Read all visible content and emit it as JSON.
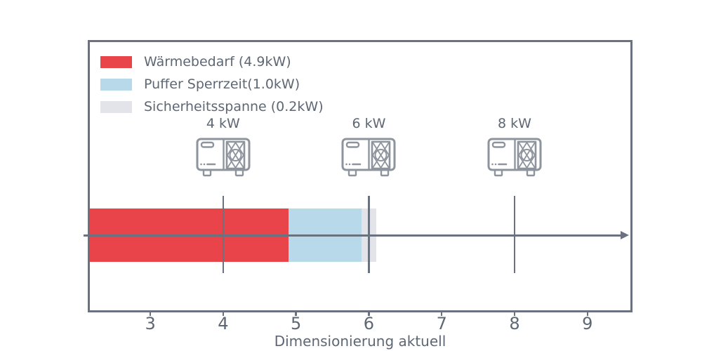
{
  "colors": {
    "axis": "#6a7280",
    "text": "#5e6774",
    "icon_stroke": "#8e949e",
    "background": "#ffffff"
  },
  "chart_data": {
    "type": "bar",
    "orientation": "horizontal-stacked",
    "title": "",
    "xlabel": "Dimensionierung aktuell",
    "ylabel": "",
    "xlim": [
      2.17,
      9.59
    ],
    "xticks": [
      3,
      4,
      5,
      6,
      7,
      8,
      9
    ],
    "grid": false,
    "legend_position": "upper left inside plot",
    "axis_arrow_right": true,
    "segments": [
      {
        "label": "Wärmebedarf (4.9kW)",
        "value_kw": 4.9,
        "start": 0,
        "end": 4.9,
        "color": "#e8444a"
      },
      {
        "label": "Puffer Sperrzeit(1.0kW)",
        "value_kw": 1.0,
        "start": 4.9,
        "end": 5.9,
        "color": "#b8d9ea"
      },
      {
        "label": "Sicherheitsspanne (0.2kW)",
        "value_kw": 0.2,
        "start": 5.9,
        "end": 6.1,
        "color": "#e2e4e9"
      }
    ],
    "markers": [
      {
        "x": 4,
        "label": "4 kW",
        "icon": "heat-pump-icon"
      },
      {
        "x": 6,
        "label": "6 kW",
        "icon": "heat-pump-icon"
      },
      {
        "x": 8,
        "label": "8 kW",
        "icon": "heat-pump-icon"
      }
    ]
  }
}
